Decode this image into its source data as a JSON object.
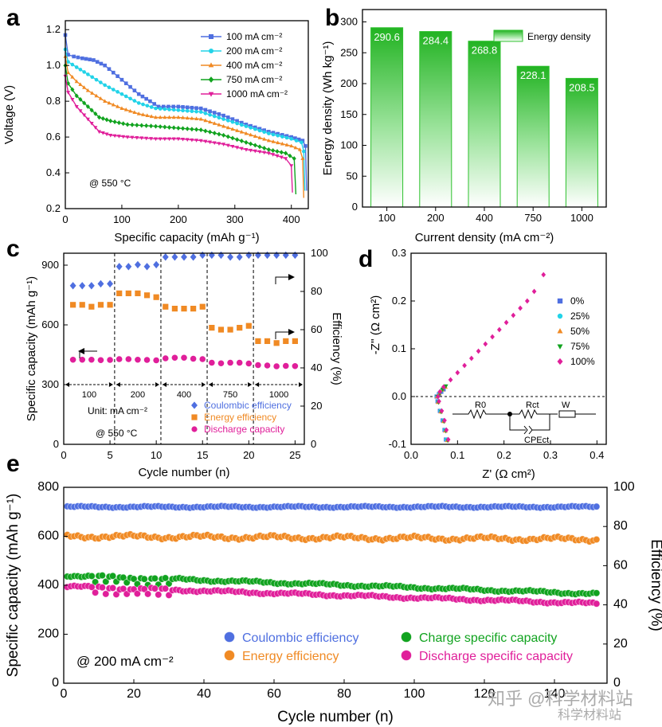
{
  "chart_data": [
    {
      "panel": "a",
      "type": "line",
      "xlabel": "Specific capacity (mAh g⁻¹)",
      "ylabel": "Voltage (V)",
      "xlim": [
        0,
        430
      ],
      "ylim": [
        0.2,
        1.25
      ],
      "xticks": [
        "0",
        "100",
        "200",
        "300",
        "400"
      ],
      "yticks": [
        "0.2",
        "0.4",
        "0.6",
        "0.8",
        "1.0",
        "1.2"
      ],
      "annotation": "@ 550 °C",
      "series": [
        {
          "name": "100 mA cm⁻²",
          "color": "#4f6fe0",
          "marker": "square",
          "points": [
            [
              0,
              1.17
            ],
            [
              5,
              1.06
            ],
            [
              15,
              1.05
            ],
            [
              30,
              1.04
            ],
            [
              50,
              1.03
            ],
            [
              70,
              1.0
            ],
            [
              100,
              0.92
            ],
            [
              130,
              0.84
            ],
            [
              150,
              0.8
            ],
            [
              165,
              0.77
            ],
            [
              200,
              0.77
            ],
            [
              240,
              0.76
            ],
            [
              280,
              0.72
            ],
            [
              320,
              0.67
            ],
            [
              360,
              0.63
            ],
            [
              400,
              0.6
            ],
            [
              420,
              0.58
            ],
            [
              425,
              0.55
            ],
            [
              427,
              0.3
            ]
          ]
        },
        {
          "name": "200 mA cm⁻²",
          "color": "#22d3e8",
          "marker": "circle",
          "points": [
            [
              0,
              1.09
            ],
            [
              5,
              1.02
            ],
            [
              20,
              0.99
            ],
            [
              40,
              0.95
            ],
            [
              70,
              0.89
            ],
            [
              100,
              0.84
            ],
            [
              130,
              0.79
            ],
            [
              160,
              0.76
            ],
            [
              200,
              0.75
            ],
            [
              240,
              0.74
            ],
            [
              280,
              0.7
            ],
            [
              320,
              0.66
            ],
            [
              360,
              0.62
            ],
            [
              400,
              0.59
            ],
            [
              418,
              0.57
            ],
            [
              422,
              0.52
            ],
            [
              424,
              0.3
            ]
          ]
        },
        {
          "name": "400 mA cm⁻²",
          "color": "#f08a24",
          "marker": "triangle-up",
          "points": [
            [
              0,
              1.05
            ],
            [
              5,
              0.96
            ],
            [
              20,
              0.91
            ],
            [
              40,
              0.86
            ],
            [
              70,
              0.8
            ],
            [
              100,
              0.76
            ],
            [
              130,
              0.73
            ],
            [
              160,
              0.71
            ],
            [
              200,
              0.71
            ],
            [
              240,
              0.7
            ],
            [
              280,
              0.66
            ],
            [
              320,
              0.62
            ],
            [
              360,
              0.58
            ],
            [
              400,
              0.55
            ],
            [
              415,
              0.53
            ],
            [
              420,
              0.48
            ],
            [
              422,
              0.26
            ]
          ]
        },
        {
          "name": "750 mA cm⁻²",
          "color": "#11a31f",
          "marker": "diamond",
          "points": [
            [
              0,
              1.0
            ],
            [
              5,
              0.9
            ],
            [
              20,
              0.83
            ],
            [
              40,
              0.77
            ],
            [
              60,
              0.71
            ],
            [
              80,
              0.69
            ],
            [
              110,
              0.67
            ],
            [
              160,
              0.66
            ],
            [
              200,
              0.65
            ],
            [
              240,
              0.64
            ],
            [
              280,
              0.61
            ],
            [
              320,
              0.57
            ],
            [
              360,
              0.53
            ],
            [
              390,
              0.51
            ],
            [
              405,
              0.48
            ],
            [
              408,
              0.28
            ]
          ]
        },
        {
          "name": "1000 mA cm⁻²",
          "color": "#e01f9a",
          "marker": "triangle-down",
          "points": [
            [
              0,
              0.94
            ],
            [
              5,
              0.85
            ],
            [
              20,
              0.77
            ],
            [
              40,
              0.7
            ],
            [
              60,
              0.63
            ],
            [
              80,
              0.61
            ],
            [
              110,
              0.6
            ],
            [
              160,
              0.59
            ],
            [
              200,
              0.59
            ],
            [
              240,
              0.58
            ],
            [
              280,
              0.56
            ],
            [
              320,
              0.53
            ],
            [
              360,
              0.51
            ],
            [
              390,
              0.48
            ],
            [
              400,
              0.44
            ],
            [
              402,
              0.29
            ]
          ]
        }
      ]
    },
    {
      "panel": "b",
      "type": "bar",
      "xlabel": "Current density (mA cm⁻²)",
      "ylabel": "Energy density (Wh kg⁻¹)",
      "ylim": [
        0,
        320
      ],
      "yticks": [
        "0",
        "50",
        "100",
        "150",
        "200",
        "250",
        "300"
      ],
      "categories": [
        "100",
        "200",
        "400",
        "750",
        "1000"
      ],
      "values": [
        290.6,
        284.4,
        268.8,
        228.1,
        208.5
      ],
      "value_labels": [
        "290.6",
        "284.4",
        "268.8",
        "228.1",
        "208.5"
      ],
      "legend": "Energy density",
      "color": "#2ec12e"
    },
    {
      "panel": "c",
      "type": "scatter",
      "xlabel": "Cycle number (n)",
      "ylabel": "Specific capacity (mAh g⁻¹)",
      "ylabel_right": "Efficiency (%)",
      "xlim": [
        0,
        26
      ],
      "ylim": [
        0,
        960
      ],
      "ylim_right": [
        0,
        100
      ],
      "xticks": [
        "0",
        "5",
        "10",
        "15",
        "20",
        "25"
      ],
      "yticks": [
        "0",
        "300",
        "600",
        "900"
      ],
      "yticks_right": [
        "0",
        "20",
        "40",
        "60",
        "80",
        "100"
      ],
      "current_segments": [
        "100",
        "200",
        "400",
        "750",
        "1000"
      ],
      "unit_label": "Unit: mA cm⁻²",
      "annotation": "@ 550 °C",
      "series": [
        {
          "name": "Coulombic efficiency",
          "axis": "right",
          "color": "#4f6fe0",
          "marker": "diamond",
          "values": [
            83,
            83,
            83,
            84,
            84,
            93,
            93,
            94,
            93,
            94,
            98,
            98,
            98,
            98,
            99,
            99,
            99,
            98,
            98,
            99,
            99,
            99,
            99,
            99,
            99
          ]
        },
        {
          "name": "Energy efficiency",
          "axis": "right",
          "color": "#f08a24",
          "marker": "square",
          "values": [
            73,
            73,
            72,
            73,
            73,
            79,
            79,
            79,
            78,
            77,
            72,
            71,
            71,
            71,
            72,
            61,
            60,
            60,
            61,
            62,
            54,
            54,
            53,
            54,
            54
          ]
        },
        {
          "name": "Discharge capacity",
          "axis": "left",
          "color": "#e01f9a",
          "marker": "circle",
          "values": [
            425,
            425,
            425,
            423,
            424,
            428,
            428,
            425,
            424,
            422,
            432,
            435,
            435,
            430,
            428,
            410,
            407,
            410,
            410,
            406,
            398,
            396,
            392,
            394,
            393
          ]
        }
      ]
    },
    {
      "panel": "d",
      "type": "scatter",
      "xlabel": "Z' (Ω cm²)",
      "ylabel": "-Z'' (Ω cm²)",
      "xlim": [
        0,
        0.42
      ],
      "ylim": [
        -0.1,
        0.3
      ],
      "xticks": [
        "0.0",
        "0.1",
        "0.2",
        "0.3",
        "0.4"
      ],
      "yticks": [
        "-0.1",
        "0.0",
        "0.1",
        "0.2",
        "0.3"
      ],
      "circuit_labels": [
        "R0",
        "Rct",
        "W",
        "CPEct"
      ],
      "series": [
        {
          "name": "0%",
          "color": "#4f6fe0",
          "marker": "square",
          "points": [
            [
              0.07,
              0.015
            ],
            [
              0.065,
              0.01
            ],
            [
              0.06,
              0.005
            ],
            [
              0.055,
              0.0
            ],
            [
              0.057,
              -0.01
            ],
            [
              0.062,
              -0.03
            ],
            [
              0.068,
              -0.05
            ],
            [
              0.072,
              -0.07
            ],
            [
              0.075,
              -0.09
            ]
          ]
        },
        {
          "name": "25%",
          "color": "#22d3e8",
          "marker": "circle",
          "points": [
            [
              0.072,
              0.02
            ],
            [
              0.066,
              0.013
            ],
            [
              0.061,
              0.006
            ],
            [
              0.056,
              0.0
            ],
            [
              0.058,
              -0.01
            ],
            [
              0.063,
              -0.03
            ],
            [
              0.069,
              -0.05
            ],
            [
              0.073,
              -0.07
            ],
            [
              0.076,
              -0.09
            ]
          ]
        },
        {
          "name": "50%",
          "color": "#f08a24",
          "marker": "triangle-up",
          "points": [
            [
              0.074,
              0.02
            ],
            [
              0.067,
              0.014
            ],
            [
              0.061,
              0.006
            ],
            [
              0.056,
              0.0
            ],
            [
              0.058,
              -0.012
            ],
            [
              0.064,
              -0.032
            ],
            [
              0.07,
              -0.052
            ],
            [
              0.074,
              -0.072
            ],
            [
              0.078,
              -0.092
            ]
          ]
        },
        {
          "name": "75%",
          "color": "#11a31f",
          "marker": "triangle-down",
          "points": [
            [
              0.075,
              0.022
            ],
            [
              0.068,
              0.015
            ],
            [
              0.062,
              0.007
            ],
            [
              0.057,
              0.0
            ],
            [
              0.059,
              -0.012
            ],
            [
              0.065,
              -0.032
            ],
            [
              0.071,
              -0.052
            ],
            [
              0.075,
              -0.072
            ],
            [
              0.079,
              -0.092
            ]
          ]
        },
        {
          "name": "100%",
          "color": "#e01f9a",
          "marker": "diamond",
          "points": [
            [
              0.058,
              0.0
            ],
            [
              0.062,
              0.01
            ],
            [
              0.07,
              0.02
            ],
            [
              0.085,
              0.035
            ],
            [
              0.1,
              0.05
            ],
            [
              0.115,
              0.065
            ],
            [
              0.13,
              0.08
            ],
            [
              0.145,
              0.095
            ],
            [
              0.16,
              0.11
            ],
            [
              0.175,
              0.125
            ],
            [
              0.19,
              0.14
            ],
            [
              0.205,
              0.155
            ],
            [
              0.22,
              0.17
            ],
            [
              0.235,
              0.185
            ],
            [
              0.25,
              0.2
            ],
            [
              0.265,
              0.22
            ],
            [
              0.285,
              0.255
            ],
            [
              0.06,
              -0.01
            ],
            [
              0.066,
              -0.03
            ],
            [
              0.072,
              -0.05
            ],
            [
              0.076,
              -0.07
            ],
            [
              0.08,
              -0.09
            ]
          ]
        }
      ]
    },
    {
      "panel": "e",
      "type": "scatter",
      "xlabel": "Cycle number (n)",
      "ylabel": "Specific capacity (mAh g⁻¹)",
      "ylabel_right": "Efficiency (%)",
      "xlim": [
        0,
        155
      ],
      "ylim": [
        0,
        800
      ],
      "ylim_right": [
        0,
        100
      ],
      "xticks": [
        "0",
        "20",
        "40",
        "60",
        "80",
        "100",
        "120",
        "140"
      ],
      "yticks": [
        "0",
        "200",
        "400",
        "600",
        "800"
      ],
      "yticks_right": [
        "0",
        "20",
        "40",
        "60",
        "80",
        "100"
      ],
      "annotation": "@ 200 mA cm⁻²",
      "series": [
        {
          "name": "Coulombic efficiency",
          "axis": "right",
          "color": "#4f6fe0",
          "start": 90,
          "end": 90
        },
        {
          "name": "Energy efficiency",
          "axis": "right",
          "color": "#f08a24",
          "start": 75,
          "end": 73.5
        },
        {
          "name": "Charge specific capacity",
          "axis": "left",
          "color": "#11a31f",
          "start": 440,
          "end": 365
        },
        {
          "name": "Discharge specific capacity",
          "axis": "left",
          "color": "#e01f9a",
          "start": 395,
          "end": 325
        }
      ]
    }
  ],
  "panel_labels": [
    "a",
    "b",
    "c",
    "d",
    "e"
  ],
  "watermark": {
    "line1": "知乎 @科学材料站",
    "line2": "科学材料站"
  }
}
